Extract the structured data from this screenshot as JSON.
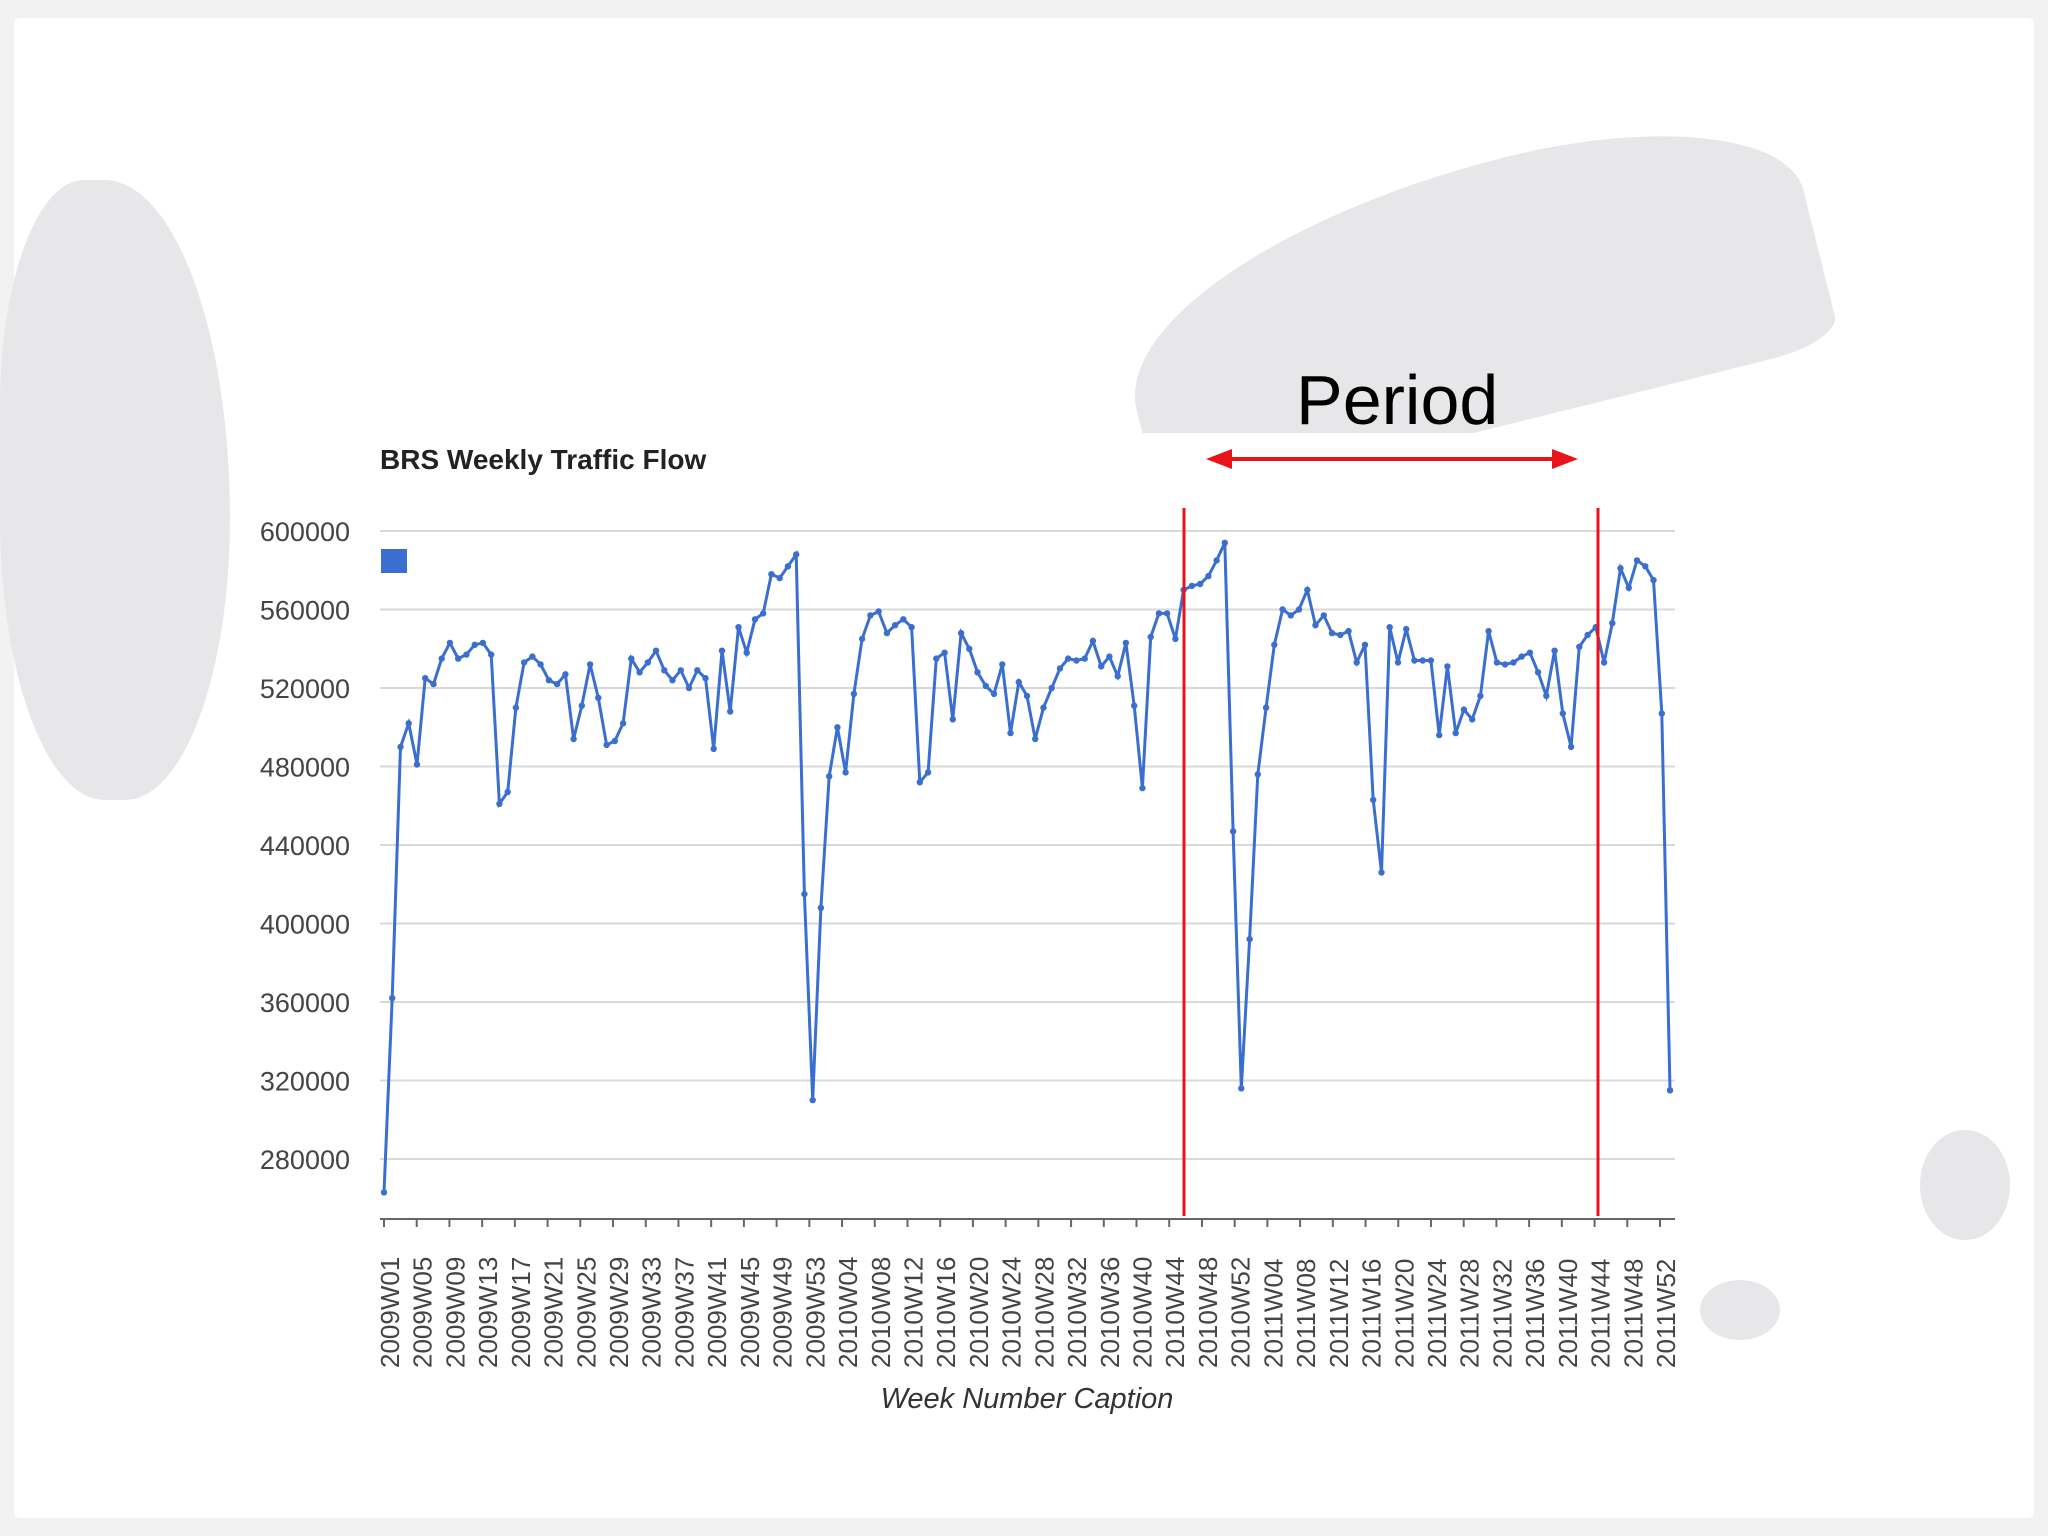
{
  "slide": {
    "annotation_label": "Period",
    "colors": {
      "annotation": "#e8131b",
      "series": "#3b6fcf",
      "grid": "#d9d9d9"
    }
  },
  "chart_data": {
    "type": "line",
    "title": "BRS Weekly Traffic Flow",
    "xlabel": "Week Number Caption",
    "ylabel": "",
    "yticks": [
      280000,
      320000,
      360000,
      400000,
      440000,
      480000,
      520000,
      560000,
      600000
    ],
    "ylim": [
      250000,
      600000
    ],
    "grid": true,
    "legend": "top-left swatch",
    "x_tick_labels": [
      "2009W01",
      "2009W05",
      "2009W09",
      "2009W13",
      "2009W17",
      "2009W21",
      "2009W25",
      "2009W29",
      "2009W33",
      "2009W37",
      "2009W41",
      "2009W45",
      "2009W49",
      "2009W53",
      "2010W04",
      "2010W08",
      "2010W12",
      "2010W16",
      "2010W20",
      "2010W24",
      "2010W28",
      "2010W32",
      "2010W36",
      "2010W40",
      "2010W44",
      "2010W48",
      "2010W52",
      "2011W04",
      "2011W08",
      "2011W12",
      "2011W16",
      "2011W20",
      "2011W24",
      "2011W28",
      "2011W32",
      "2011W36",
      "2011W40",
      "2011W44",
      "2011W48",
      "2011W52"
    ],
    "highlight_period": {
      "start": "2010W44",
      "end": "2011W40"
    },
    "series": [
      {
        "color": "#3b6fcf",
        "values": [
          263000,
          362000,
          490000,
          502000,
          481000,
          525000,
          522000,
          535000,
          543000,
          535000,
          537000,
          542000,
          543000,
          537000,
          461000,
          467000,
          510000,
          533000,
          536000,
          532000,
          524000,
          522000,
          527000,
          494000,
          511000,
          532000,
          515000,
          491000,
          493000,
          502000,
          535000,
          528000,
          533000,
          539000,
          529000,
          524000,
          529000,
          520000,
          529000,
          525000,
          489000,
          539000,
          508000,
          551000,
          538000,
          555000,
          558000,
          578000,
          576000,
          582000,
          588000,
          415000,
          310000,
          408000,
          475000,
          500000,
          477000,
          517000,
          545000,
          557000,
          559000,
          548000,
          552000,
          555000,
          551000,
          472000,
          477000,
          535000,
          538000,
          504000,
          548000,
          540000,
          528000,
          521000,
          517000,
          532000,
          497000,
          523000,
          516000,
          494000,
          510000,
          520000,
          530000,
          535000,
          534000,
          535000,
          544000,
          531000,
          536000,
          526000,
          543000,
          511000,
          469000,
          546000,
          558000,
          558000,
          545000,
          570000,
          572000,
          573000,
          577000,
          585000,
          594000,
          447000,
          316000,
          392000,
          476000,
          510000,
          542000,
          560000,
          557000,
          560000,
          570000,
          552000,
          557000,
          548000,
          547000,
          549000,
          533000,
          542000,
          463000,
          426000,
          551000,
          533000,
          550000,
          534000,
          534000,
          534000,
          496000,
          531000,
          497000,
          509000,
          504000,
          516000,
          549000,
          533000,
          532000,
          533000,
          536000,
          538000,
          528000,
          516000,
          539000,
          507000,
          490000,
          541000,
          547000,
          551000,
          533000,
          553000,
          581000,
          571000,
          585000,
          582000,
          575000,
          507000,
          315000
        ]
      }
    ]
  }
}
